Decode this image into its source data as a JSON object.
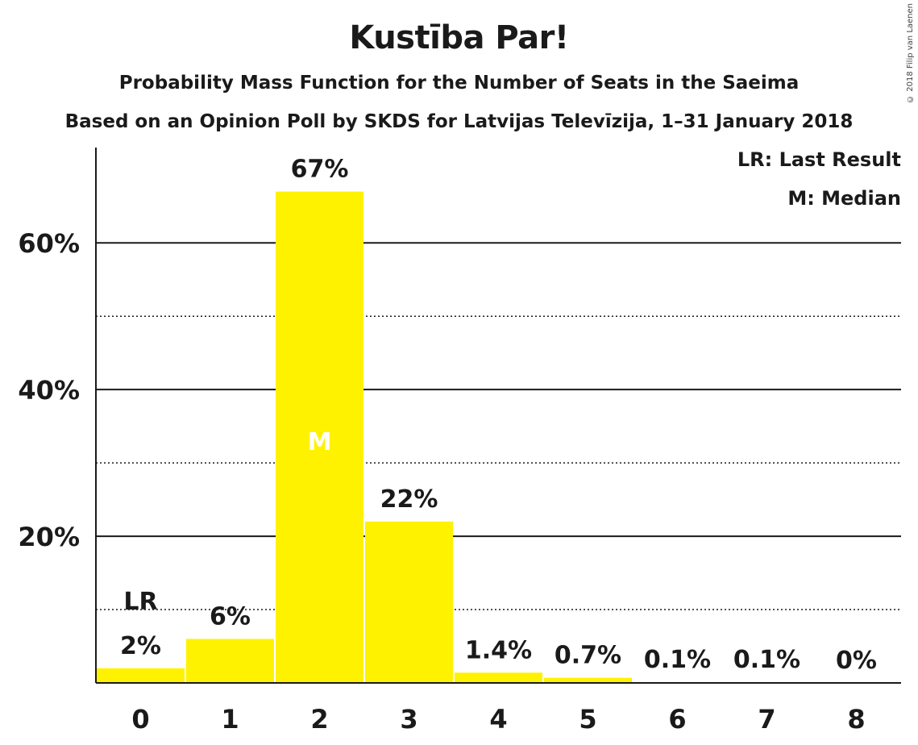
{
  "header": {
    "title": "Kustība Par!",
    "subtitle": "Probability Mass Function for the Number of Seats in the Saeima",
    "subtitle2": "Based on an Opinion Poll by SKDS for Latvijas Televīzija, 1–31 January 2018",
    "copyright": "© 2018 Filip van Laenen"
  },
  "legend": {
    "last_result": "LR: Last Result",
    "median": "M: Median"
  },
  "colors": {
    "bar": "#fff200",
    "text": "#1a1a1a"
  },
  "chart_data": {
    "type": "bar",
    "categories": [
      "0",
      "1",
      "2",
      "3",
      "4",
      "5",
      "6",
      "7",
      "8"
    ],
    "values": [
      2,
      6,
      67,
      22,
      1.4,
      0.7,
      0.1,
      0.1,
      0
    ],
    "value_labels": [
      "2%",
      "6%",
      "67%",
      "22%",
      "1.4%",
      "0.7%",
      "0.1%",
      "0.1%",
      "0%"
    ],
    "ylim": [
      0,
      73
    ],
    "yticks": [
      20,
      40,
      60
    ],
    "ytick_labels": [
      "20%",
      "40%",
      "60%"
    ],
    "minor_gridlines": [
      10,
      30,
      50
    ],
    "last_result_index": 0,
    "last_result_marker": "LR",
    "median_index": 2,
    "median_marker": "M",
    "legend_position": "top-right"
  }
}
